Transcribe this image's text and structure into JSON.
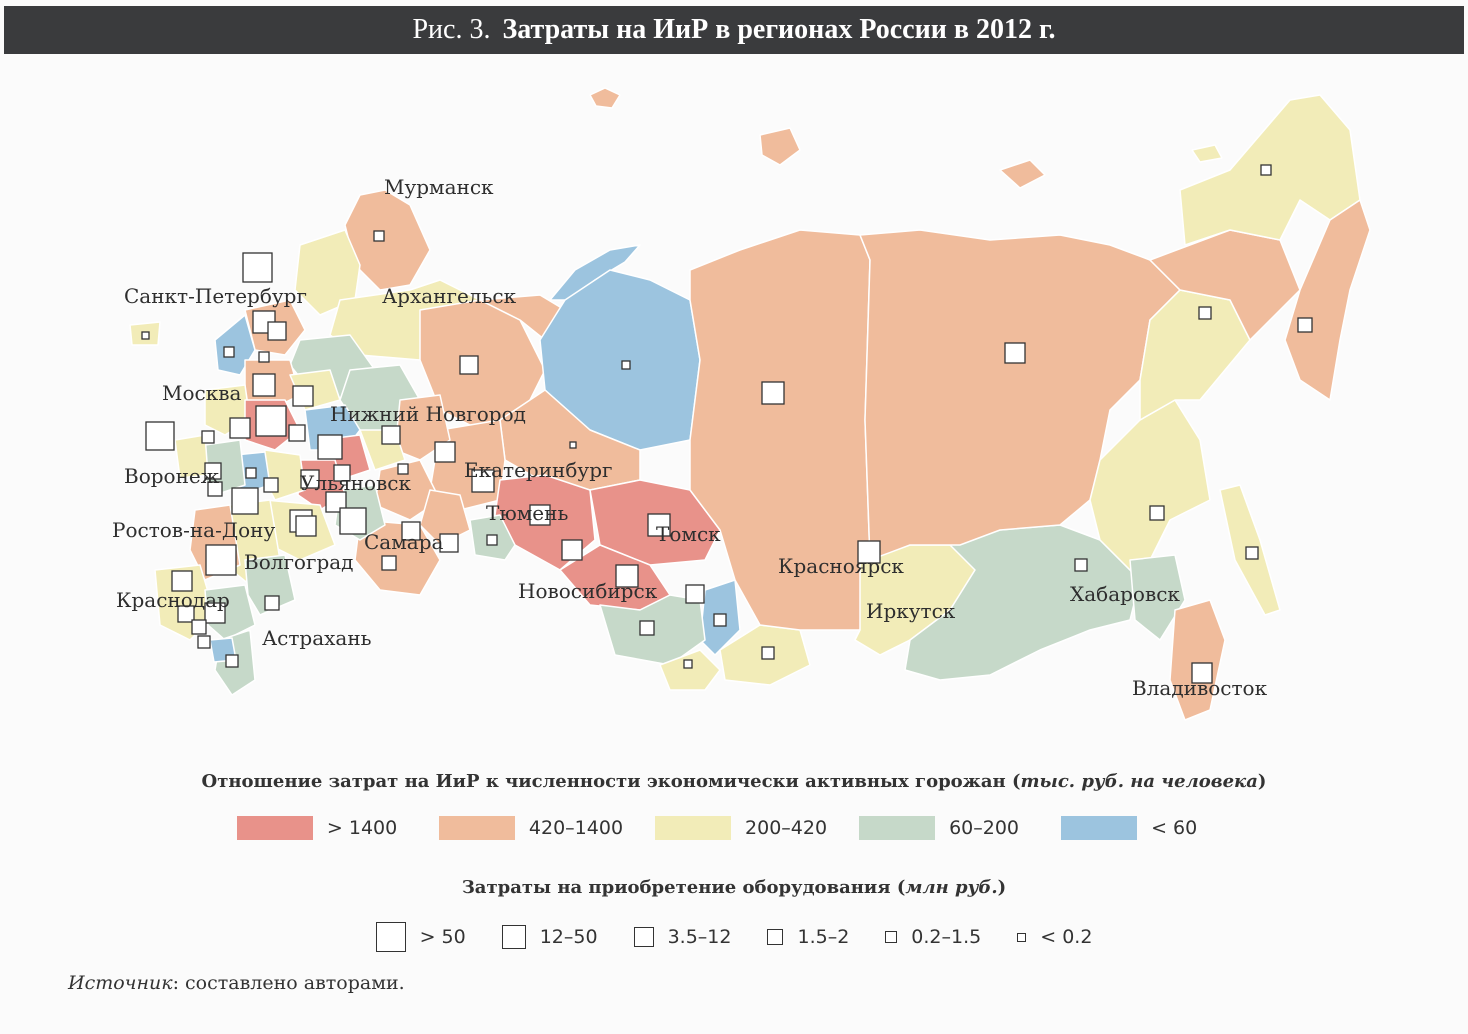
{
  "figure": {
    "number": "Рис. 3.",
    "title": "Затраты на ИиР в регионах России в 2012 г."
  },
  "colors": {
    "gt1400": "#e8928a",
    "r420_1400": "#f0bc9c",
    "r200_420": "#f2ecb8",
    "r60_200": "#c6d9c9",
    "lt60": "#9cc4df",
    "border": "#ffffff",
    "title_bg": "#3a3b3d"
  },
  "cities": {
    "murmansk": "Мурманск",
    "spb": "Санкт-Петербург",
    "arkhangelsk": "Архангельск",
    "moscow": "Москва",
    "nnovgorod": "Нижний Новгород",
    "voronezh": "Воронеж",
    "ulyanovsk": "Ульяновск",
    "ekaterinburg": "Екатеринбург",
    "tyumen": "Тюмень",
    "tomsk": "Томск",
    "rostov": "Ростов-на-Дону",
    "samara": "Самара",
    "volgograd": "Волгоград",
    "novosibirsk": "Новосибирск",
    "krasnoyarsk": "Красноярск",
    "irkutsk": "Иркутск",
    "khabarovsk": "Хабаровск",
    "krasnodar": "Краснодар",
    "astrakhan": "Астрахань",
    "vladivostok": "Владивосток"
  },
  "legend_color": {
    "title_main": "Отношение затрат на ИиР к численности экономически активных горожан",
    "title_unit": "тыс. руб. на человека",
    "items": [
      {
        "label": "> 1400",
        "color": "#e8928a"
      },
      {
        "label": "420–1400",
        "color": "#f0bc9c"
      },
      {
        "label": "200–420",
        "color": "#f2ecb8"
      },
      {
        "label": "60–200",
        "color": "#c6d9c9"
      },
      {
        "label": "< 60",
        "color": "#9cc4df"
      }
    ]
  },
  "legend_size": {
    "title_main": "Затраты на приобретение оборудования",
    "title_unit": "млн руб.",
    "items": [
      {
        "label": "> 50"
      },
      {
        "label": "12–50"
      },
      {
        "label": "3.5–12"
      },
      {
        "label": "1.5–2"
      },
      {
        "label": "0.2–1.5"
      },
      {
        "label": "< 0.2"
      }
    ]
  },
  "source": {
    "label": "Источник",
    "text": ": составлено авторами."
  }
}
